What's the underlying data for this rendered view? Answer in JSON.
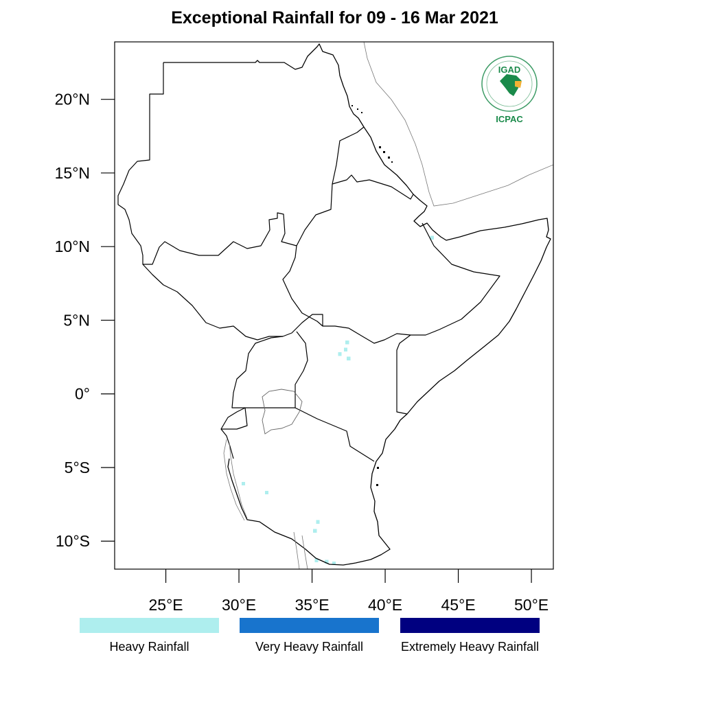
{
  "title": "Exceptional Rainfall for 09 - 16 Mar 2021",
  "map": {
    "lon_range": [
      21.5,
      51.5
    ],
    "lat_range": [
      -11.9,
      23.9
    ],
    "lat_ticks": [
      {
        "value": 20,
        "label": "20°N"
      },
      {
        "value": 15,
        "label": "15°N"
      },
      {
        "value": 10,
        "label": "10°N"
      },
      {
        "value": 5,
        "label": "5°N"
      },
      {
        "value": 0,
        "label": "0°"
      },
      {
        "value": -5,
        "label": "5°S"
      },
      {
        "value": -10,
        "label": "10°S"
      }
    ],
    "lon_ticks": [
      {
        "value": 25,
        "label": "25°E"
      },
      {
        "value": 30,
        "label": "30°E"
      },
      {
        "value": 35,
        "label": "35°E"
      },
      {
        "value": 40,
        "label": "40°E"
      },
      {
        "value": 45,
        "label": "45°E"
      },
      {
        "value": 50,
        "label": "50°E"
      }
    ]
  },
  "legend": [
    {
      "label": "Heavy Rainfall",
      "color": "#aeeeee"
    },
    {
      "label": "Very Heavy Rainfall",
      "color": "#1874cd"
    },
    {
      "label": "Extremely Heavy Rainfall",
      "color": "#000080"
    }
  ],
  "rain_areas": [
    {
      "category": "Heavy Rainfall",
      "lon": 37.4,
      "lat": 3.5
    },
    {
      "category": "Heavy Rainfall",
      "lon": 37.3,
      "lat": 3.0
    },
    {
      "category": "Heavy Rainfall",
      "lon": 36.9,
      "lat": 2.7
    },
    {
      "category": "Heavy Rainfall",
      "lon": 37.5,
      "lat": 2.4
    },
    {
      "category": "Heavy Rainfall",
      "lon": 43.2,
      "lat": 10.6
    },
    {
      "category": "Heavy Rainfall",
      "lon": 30.3,
      "lat": -6.1
    },
    {
      "category": "Heavy Rainfall",
      "lon": 31.9,
      "lat": -6.7
    },
    {
      "category": "Heavy Rainfall",
      "lon": 35.4,
      "lat": -8.7
    },
    {
      "category": "Heavy Rainfall",
      "lon": 35.2,
      "lat": -9.3
    },
    {
      "category": "Heavy Rainfall",
      "lon": 35.3,
      "lat": -11.3
    },
    {
      "category": "Heavy Rainfall",
      "lon": 36.0,
      "lat": -11.4
    },
    {
      "category": "Heavy Rainfall",
      "lon": 36.5,
      "lat": -11.5
    }
  ],
  "logo": {
    "acronym": "IGAD",
    "org": "ICPAC",
    "colors": {
      "primary": "#1a8a4a",
      "accent": "#f2b134"
    }
  }
}
